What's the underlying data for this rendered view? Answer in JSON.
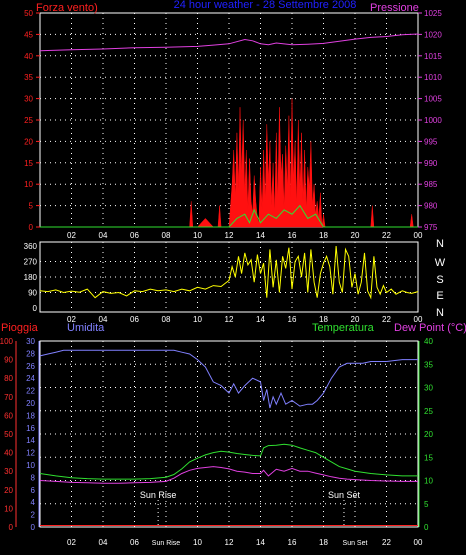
{
  "chart_data": [
    {
      "type": "line",
      "title": "24 hour weather - 28 Settembre 2008",
      "labels": {
        "left": "Forza vento)",
        "right": "Pressione"
      },
      "left_axis": {
        "range": [
          0,
          50
        ],
        "ticks": [
          0,
          5,
          10,
          15,
          20,
          25,
          30,
          35,
          40,
          45,
          50
        ],
        "color": "#ff2020"
      },
      "right_axis": {
        "range": [
          975,
          1025
        ],
        "ticks": [
          975,
          980,
          985,
          990,
          995,
          1000,
          1005,
          1010,
          1015,
          1020,
          1025
        ],
        "color": "#e040e0"
      },
      "x_ticks": [
        "02",
        "04",
        "06",
        "08",
        "10",
        "12",
        "14",
        "16",
        "18",
        "20",
        "22",
        "00"
      ],
      "grid": true,
      "series": [
        {
          "key": "pressure",
          "color": "#e040e0",
          "axis": "right",
          "x": [
            0,
            2,
            4,
            6,
            8,
            10,
            11,
            12,
            13,
            13.5,
            14,
            14.5,
            15,
            16,
            17,
            18,
            19,
            20,
            21,
            22,
            23,
            24
          ],
          "values": [
            1016.2,
            1016.4,
            1016.6,
            1016.9,
            1017.0,
            1017.2,
            1017.5,
            1017.8,
            1018.8,
            1018.5,
            1017.8,
            1017.6,
            1018.0,
            1017.6,
            1017.7,
            1017.9,
            1018.4,
            1018.9,
            1019.3,
            1019.5,
            1019.9,
            1020.1
          ]
        },
        {
          "key": "wind",
          "color": "#ff1010",
          "axis": "left",
          "x": [
            0,
            9.5,
            9.6,
            9.7,
            10,
            10.5,
            11,
            11.3,
            11.4,
            11.5,
            12,
            12.2,
            12.3,
            12.4,
            12.5,
            12.6,
            12.7,
            12.8,
            12.9,
            13.0,
            13.1,
            13.2,
            13.3,
            13.4,
            13.5,
            13.6,
            13.7,
            13.8,
            13.9,
            14.0,
            14.1,
            14.2,
            14.3,
            14.4,
            14.5,
            14.6,
            14.7,
            14.8,
            14.9,
            15.0,
            15.1,
            15.2,
            15.3,
            15.4,
            15.5,
            15.6,
            15.7,
            15.8,
            15.9,
            16.0,
            16.1,
            16.2,
            16.3,
            16.4,
            16.5,
            16.6,
            16.7,
            16.8,
            16.9,
            17.0,
            17.1,
            17.2,
            17.3,
            17.4,
            17.5,
            17.6,
            17.7,
            17.8,
            17.9,
            18.0,
            18.1,
            21.0,
            21.1,
            21.2,
            23.5,
            23.6,
            23.7,
            24
          ],
          "values": [
            0,
            0,
            6,
            0,
            0,
            2,
            0,
            0,
            5,
            0,
            0,
            10,
            18,
            7,
            22,
            9,
            28,
            12,
            25,
            8,
            18,
            4,
            16,
            6,
            3,
            12,
            6,
            2,
            1,
            14,
            4,
            18,
            6,
            24,
            10,
            20,
            5,
            15,
            3,
            22,
            6,
            28,
            12,
            17,
            4,
            19,
            9,
            26,
            7,
            30,
            11,
            20,
            5,
            25,
            8,
            22,
            6,
            18,
            4,
            14,
            9,
            20,
            5,
            10,
            3,
            6,
            2,
            8,
            0,
            3,
            0,
            0,
            5,
            0,
            0,
            3,
            0,
            0
          ]
        },
        {
          "key": "wind_gust_low",
          "color": "#30e030",
          "axis": "left",
          "x": [
            0,
            12,
            12.5,
            13,
            13.3,
            13.6,
            14,
            14.5,
            15,
            15.5,
            16,
            16.5,
            17,
            17.5,
            18,
            24
          ],
          "values": [
            0,
            0,
            2,
            3,
            1,
            4,
            1,
            3,
            2,
            4,
            3,
            5,
            2,
            3,
            0,
            0
          ]
        }
      ]
    },
    {
      "type": "line",
      "title": "",
      "labels": {
        "right": [
          "N",
          "W",
          "S",
          "E",
          "N"
        ]
      },
      "left_axis": {
        "range": [
          0,
          360
        ],
        "ticks": [
          0,
          90,
          180,
          270,
          360
        ],
        "color": "#ffffff"
      },
      "x_ticks": [
        "02",
        "04",
        "06",
        "08",
        "10",
        "12",
        "14",
        "16",
        "18",
        "20",
        "22",
        "00"
      ],
      "grid": true,
      "series": [
        {
          "key": "wind_dir",
          "color": "#ffff00",
          "axis": "left",
          "x": [
            0,
            0.5,
            1,
            1.5,
            2,
            2.5,
            3,
            3.5,
            4,
            4.5,
            5,
            5.5,
            6,
            6.5,
            7,
            7.5,
            8,
            8.5,
            9,
            9.5,
            10,
            10.5,
            11,
            11.5,
            12,
            12.2,
            12.4,
            12.6,
            12.8,
            13,
            13.2,
            13.4,
            13.6,
            13.8,
            14,
            14.2,
            14.4,
            14.6,
            14.8,
            15,
            15.2,
            15.4,
            15.6,
            15.8,
            16,
            16.2,
            16.4,
            16.6,
            16.8,
            17,
            17.2,
            17.4,
            17.6,
            17.8,
            18,
            18.2,
            18.4,
            18.6,
            18.8,
            19,
            19.2,
            19.4,
            19.6,
            19.8,
            20,
            20.2,
            20.4,
            20.6,
            20.8,
            21,
            21.2,
            21.4,
            21.6,
            21.8,
            22,
            22.3,
            22.6,
            23,
            23.3,
            23.6,
            24
          ],
          "values": [
            100,
            95,
            105,
            90,
            98,
            92,
            110,
            60,
            95,
            85,
            90,
            70,
            100,
            95,
            110,
            100,
            105,
            95,
            110,
            100,
            120,
            110,
            130,
            125,
            160,
            240,
            180,
            300,
            200,
            320,
            250,
            280,
            150,
            310,
            200,
            260,
            60,
            340,
            120,
            280,
            90,
            300,
            230,
            350,
            110,
            270,
            300,
            180,
            320,
            90,
            340,
            150,
            60,
            200,
            260,
            300,
            240,
            80,
            360,
            150,
            90,
            340,
            300,
            120,
            200,
            80,
            150,
            320,
            100,
            60,
            300,
            120,
            80,
            130,
            90,
            110,
            80,
            100,
            90,
            85,
            95
          ]
        }
      ]
    },
    {
      "type": "line",
      "title": "",
      "labels": {
        "pioggia": "Pioggia",
        "umidita": "Umidita",
        "temperatura": "Temperatura",
        "dew": "Dew Point (°C)"
      },
      "axes": {
        "pioggia": {
          "range": [
            0,
            100
          ],
          "ticks": [
            0,
            10,
            20,
            30,
            40,
            50,
            60,
            70,
            80,
            90,
            100
          ],
          "color": "#ff3030"
        },
        "umidita": {
          "range": [
            0,
            30
          ],
          "ticks": [
            0,
            2,
            4,
            6,
            8,
            10,
            12,
            14,
            16,
            18,
            20,
            22,
            24,
            26,
            28,
            30
          ],
          "color": "#8080ff"
        },
        "temp": {
          "range": [
            0,
            40
          ],
          "ticks": [
            0,
            5,
            10,
            15,
            20,
            25,
            30,
            35,
            40
          ],
          "color": "#30e030"
        }
      },
      "annotations": [
        {
          "text": "Sun Rise",
          "x": 7.5
        },
        {
          "text": "Sun Set",
          "x": 19.3
        }
      ],
      "x_ticks": [
        "02",
        "04",
        "06",
        "Sun Rise",
        "10",
        "12",
        "14",
        "16",
        "18",
        "Sun Set",
        "22",
        "00"
      ],
      "grid": true,
      "series": [
        {
          "key": "humidity",
          "color": "#8080ff",
          "axis": "pioggia",
          "x": [
            0,
            0.5,
            1,
            1.5,
            2,
            3,
            4,
            5,
            6,
            7,
            8,
            8.5,
            9,
            9.5,
            10,
            10.5,
            11,
            11.5,
            12,
            12.3,
            12.6,
            13,
            13.5,
            14,
            14.2,
            14.4,
            14.6,
            14.8,
            15,
            15.3,
            15.6,
            16,
            16.5,
            17,
            17.3,
            17.6,
            18,
            18.5,
            19,
            19.5,
            20,
            20.5,
            21,
            22,
            23,
            24
          ],
          "values": [
            92,
            93,
            94,
            95,
            95,
            95,
            95,
            95,
            95,
            95,
            95,
            95,
            94,
            93,
            90,
            86,
            78,
            76,
            72,
            77,
            72,
            76,
            80,
            78,
            68,
            74,
            64,
            70,
            66,
            72,
            66,
            68,
            65,
            66,
            66,
            68,
            72,
            80,
            86,
            88,
            88,
            88,
            89,
            89,
            90,
            90
          ]
        },
        {
          "key": "temperature",
          "color": "#30e030",
          "axis": "temp",
          "x": [
            0,
            1,
            2,
            3,
            4,
            5,
            6,
            7,
            8,
            8.5,
            9,
            9.5,
            10,
            10.5,
            11,
            11.5,
            12,
            12.5,
            13,
            13.5,
            14,
            14.2,
            14.5,
            15,
            15.5,
            16,
            16.5,
            17,
            17.5,
            18,
            18.5,
            19,
            19.5,
            20,
            21,
            22,
            23,
            24
          ],
          "values": [
            11.5,
            11.0,
            10.6,
            10.4,
            10.3,
            10.3,
            10.3,
            10.4,
            10.7,
            11.3,
            12.5,
            14.0,
            14.8,
            15.5,
            16.0,
            16.3,
            16.1,
            15.8,
            15.6,
            15.4,
            15.3,
            17.0,
            17.5,
            17.6,
            17.8,
            17.6,
            17.0,
            16.5,
            16.0,
            15.0,
            14.0,
            13.0,
            12.5,
            12.0,
            11.5,
            11.2,
            11.0,
            11.0
          ]
        },
        {
          "key": "dew_point",
          "color": "#e040e0",
          "axis": "temp",
          "x": [
            0,
            1,
            2,
            3,
            4,
            5,
            6,
            7,
            8,
            8.5,
            9,
            9.5,
            10,
            10.5,
            11,
            11.5,
            12,
            12.5,
            13,
            13.5,
            14,
            14.2,
            14.5,
            15,
            15.5,
            16,
            16.5,
            17,
            17.5,
            18,
            18.5,
            19,
            19.5,
            20,
            21,
            22,
            23,
            24
          ],
          "values": [
            10.0,
            9.8,
            9.6,
            9.5,
            9.4,
            9.4,
            9.5,
            9.6,
            9.8,
            10.5,
            11.5,
            12.2,
            12.6,
            12.8,
            13.0,
            12.8,
            12.5,
            12.0,
            11.8,
            11.5,
            11.5,
            12.2,
            11.0,
            12.4,
            12.0,
            12.6,
            12.0,
            12.0,
            11.6,
            11.2,
            10.8,
            10.5,
            10.3,
            10.2,
            10.0,
            9.9,
            9.8,
            9.8
          ]
        },
        {
          "key": "rain",
          "color": "#ff2020",
          "axis": "pioggia",
          "x": [
            0,
            24
          ],
          "values": [
            0.8,
            0.8
          ]
        }
      ]
    }
  ]
}
